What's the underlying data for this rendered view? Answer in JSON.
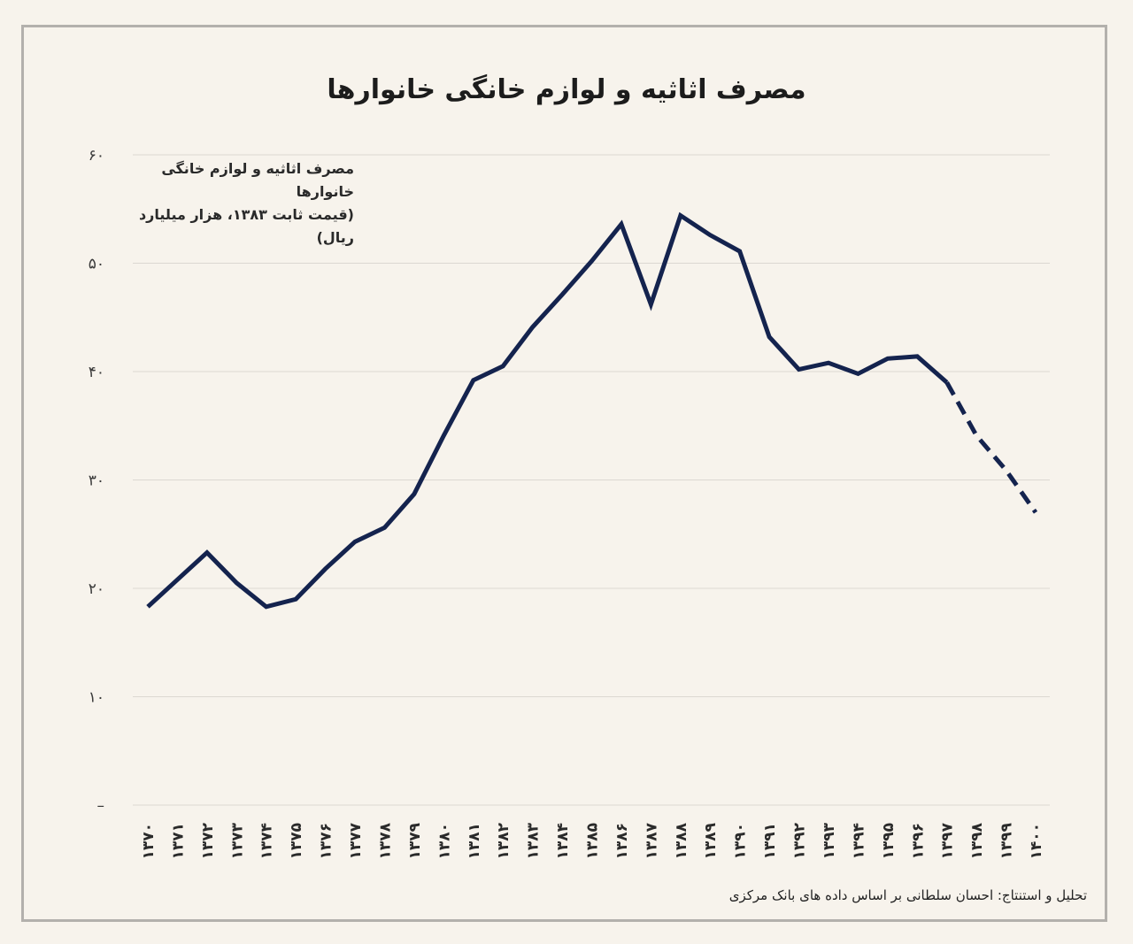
{
  "chart_data": {
    "type": "line",
    "title": "مصرف اثاثیه و لوازم خانگی خانوارها",
    "series_label_line1": "مصرف اثاثیه و لوازم خانگی خانوارها",
    "series_label_line2": "(قیمت ثابت ۱۳۸۳، هزار میلیارد ریال)",
    "source": "تحلیل و استنتاج: احسان سلطانی بر اساس داده های بانک مرکزی",
    "ylim": [
      0,
      60
    ],
    "yticks": [
      {
        "value": 0,
        "label": "–"
      },
      {
        "value": 10,
        "label": "۱۰"
      },
      {
        "value": 20,
        "label": "۲۰"
      },
      {
        "value": 30,
        "label": "۳۰"
      },
      {
        "value": 40,
        "label": "۴۰"
      },
      {
        "value": 50,
        "label": "۵۰"
      },
      {
        "value": 60,
        "label": "۶۰"
      }
    ],
    "grid": true,
    "color": "#14234e",
    "x_labels": [
      "۱۳۷۰",
      "۱۳۷۱",
      "۱۳۷۲",
      "۱۳۷۳",
      "۱۳۷۴",
      "۱۳۷۵",
      "۱۳۷۶",
      "۱۳۷۷",
      "۱۳۷۸",
      "۱۳۷۹",
      "۱۳۸۰",
      "۱۳۸۱",
      "۱۳۸۲",
      "۱۳۸۳",
      "۱۳۸۴",
      "۱۳۸۵",
      "۱۳۸۶",
      "۱۳۸۷",
      "۱۳۸۸",
      "۱۳۸۹",
      "۱۳۹۰",
      "۱۳۹۱",
      "۱۳۹۲",
      "۱۳۹۳",
      "۱۳۹۴",
      "۱۳۹۵",
      "۱۳۹۶",
      "۱۳۹۷",
      "۱۳۹۸",
      "۱۳۹۹",
      "۱۴۰۰"
    ],
    "values": [
      18.3,
      20.8,
      23.3,
      20.5,
      18.3,
      19.0,
      21.8,
      24.3,
      25.6,
      28.7,
      34.1,
      39.2,
      40.5,
      44.1,
      47.1,
      50.2,
      53.6,
      46.2,
      54.4,
      52.6,
      51.1,
      43.2,
      40.2,
      40.8,
      39.8,
      41.2,
      41.4,
      39.0,
      34.1,
      30.9,
      27.0
    ],
    "dashed_from_index": 27
  }
}
